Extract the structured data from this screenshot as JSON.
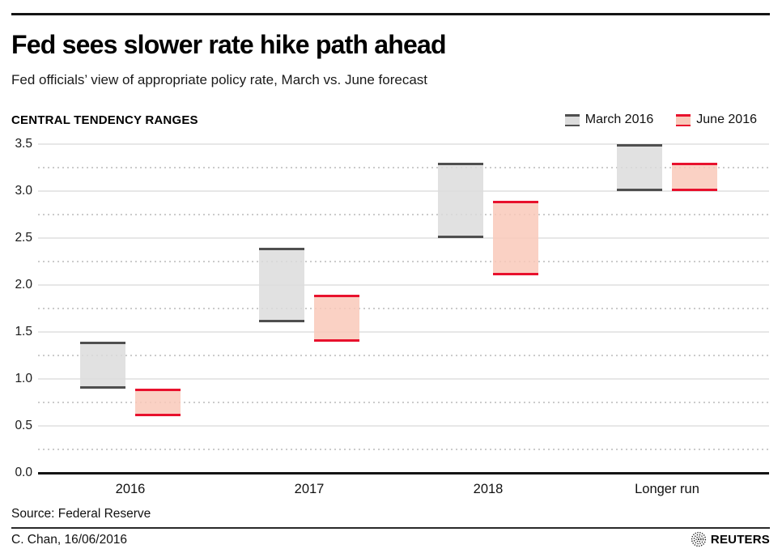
{
  "header": {
    "title": "Fed sees slower rate hike path ahead",
    "subtitle": "Fed officials’ view of appropriate policy rate, March vs. June forecast"
  },
  "chart": {
    "section_label": "CENTRAL TENDENCY RANGES",
    "legend": [
      {
        "label": "March 2016",
        "fill": "#dcdcdc",
        "border": "#4f4f4f"
      },
      {
        "label": "June 2016",
        "fill": "#f9c9ba",
        "border": "#e8112d"
      }
    ]
  },
  "chart_data": {
    "type": "bar",
    "subtype": "floating-range-columns",
    "title": "CENTRAL TENDENCY RANGES",
    "categories": [
      "2016",
      "2017",
      "2018",
      "Longer run"
    ],
    "series": [
      {
        "name": "March 2016",
        "ranges": [
          [
            0.9,
            1.4
          ],
          [
            1.6,
            2.4
          ],
          [
            2.5,
            3.3
          ],
          [
            3.0,
            3.5
          ]
        ],
        "fill": "#dcdcdc",
        "border": "#4f4f4f"
      },
      {
        "name": "June 2016",
        "ranges": [
          [
            0.6,
            0.9
          ],
          [
            1.4,
            1.9
          ],
          [
            2.1,
            2.9
          ],
          [
            3.0,
            3.3
          ]
        ],
        "fill": "#f9c9ba",
        "border": "#e8112d"
      }
    ],
    "xlabel": "",
    "ylabel": "",
    "ylim": [
      0,
      3.5
    ],
    "yticks": [
      "0.0",
      "0.5",
      "1.0",
      "1.5",
      "2.0",
      "2.5",
      "3.0",
      "3.5"
    ],
    "ytick_step": 0.5,
    "grid": "solid light-gray lines at 0.5 steps, dotted lines at 0.25 midpoints, black baseline at 0.0",
    "legend_position": "top-right"
  },
  "footer": {
    "source": "Source: Federal Reserve",
    "credit": "C. Chan, 16/06/2016",
    "brand": "REUTERS"
  }
}
